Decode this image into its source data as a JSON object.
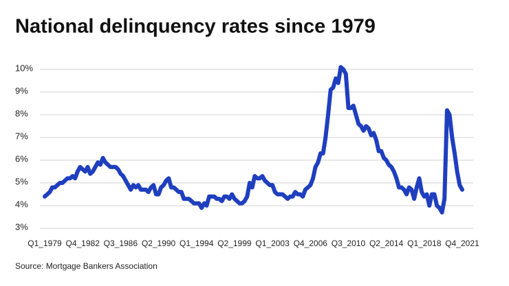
{
  "chart_data": {
    "type": "line",
    "title": "National delinquency rates since 1979",
    "source": "Source: Mortgage Bankers Association",
    "color": "#1f3fbf",
    "grid": true,
    "categories": [
      "Q1_1979",
      null,
      null,
      null,
      null,
      null,
      null,
      null,
      null,
      null,
      null,
      null,
      null,
      null,
      null,
      "Q4_1982",
      null,
      null,
      null,
      null,
      null,
      null,
      null,
      null,
      null,
      null,
      null,
      null,
      null,
      null,
      "Q3_1986",
      null,
      null,
      null,
      null,
      null,
      null,
      null,
      null,
      null,
      null,
      null,
      null,
      null,
      null,
      "Q2_1990",
      null,
      null,
      null,
      null,
      null,
      null,
      null,
      null,
      null,
      null,
      null,
      null,
      null,
      null,
      "Q1_1994",
      null,
      null,
      null,
      null,
      null,
      null,
      null,
      null,
      null,
      null,
      null,
      null,
      null,
      null,
      "Q2_1999",
      null,
      null,
      null,
      null,
      null,
      null,
      null,
      null,
      null,
      null,
      null,
      null,
      null,
      null,
      "Q1_2003",
      null,
      null,
      null,
      null,
      null,
      null,
      null,
      null,
      null,
      null,
      null,
      null,
      null,
      null,
      "Q4_2006",
      null,
      null,
      null,
      null,
      null,
      null,
      null,
      null,
      null,
      null,
      null,
      null,
      null,
      null,
      "Q3_2010",
      null,
      null,
      null,
      null,
      null,
      null,
      null,
      null,
      null,
      null,
      null,
      null,
      null,
      null,
      "Q2_2014",
      null,
      null,
      null,
      null,
      null,
      null,
      null,
      null,
      null,
      null,
      null,
      null,
      null,
      null,
      "Q1_2018",
      null,
      null,
      null,
      null,
      null,
      null,
      null,
      null,
      null,
      null,
      null,
      null,
      null,
      null,
      "Q4_2021"
    ],
    "values": [
      4.4,
      4.5,
      4.6,
      4.8,
      4.8,
      4.9,
      5.0,
      5.0,
      5.1,
      5.2,
      5.2,
      5.3,
      5.2,
      5.5,
      5.7,
      5.6,
      5.5,
      5.7,
      5.4,
      5.5,
      5.7,
      5.9,
      5.8,
      6.1,
      5.9,
      5.8,
      5.7,
      5.7,
      5.7,
      5.6,
      5.4,
      5.3,
      5.1,
      4.9,
      4.7,
      4.9,
      4.8,
      4.9,
      4.7,
      4.7,
      4.7,
      4.6,
      4.8,
      4.9,
      4.5,
      4.5,
      4.8,
      4.9,
      5.1,
      5.2,
      4.8,
      4.8,
      4.7,
      4.6,
      4.6,
      4.3,
      4.3,
      4.3,
      4.2,
      4.1,
      4.1,
      4.1,
      3.9,
      4.1,
      4.0,
      4.4,
      4.4,
      4.4,
      4.3,
      4.3,
      4.2,
      4.4,
      4.4,
      4.3,
      4.5,
      4.3,
      4.2,
      4.1,
      4.1,
      4.2,
      4.4,
      5.0,
      4.8,
      5.3,
      5.2,
      5.2,
      5.3,
      5.1,
      5.0,
      4.9,
      4.9,
      4.6,
      4.5,
      4.5,
      4.5,
      4.4,
      4.3,
      4.4,
      4.4,
      4.6,
      4.5,
      4.5,
      4.4,
      4.7,
      4.8,
      4.9,
      5.2,
      5.7,
      5.9,
      6.3,
      6.3,
      7.0,
      8.0,
      9.1,
      9.2,
      9.6,
      9.4,
      10.1,
      10.0,
      9.8,
      8.3,
      8.3,
      8.4,
      8.0,
      7.6,
      7.5,
      7.3,
      7.5,
      7.4,
      7.1,
      7.2,
      6.9,
      6.4,
      6.4,
      6.1,
      6.0,
      5.8,
      5.7,
      5.5,
      5.2,
      4.8,
      4.8,
      4.7,
      4.5,
      4.8,
      4.7,
      4.3,
      4.8,
      5.2,
      4.6,
      4.4,
      4.5,
      4.0,
      4.5,
      4.5,
      4.0,
      3.9,
      3.7,
      4.3,
      8.2,
      8.0,
      7.0,
      6.3,
      5.5,
      4.9,
      4.7
    ],
    "ylim": [
      2.7,
      10.3
    ],
    "yticks": [
      {
        "value": 3,
        "label": "3%"
      },
      {
        "value": 4,
        "label": "4%"
      },
      {
        "value": 5,
        "label": "5%"
      },
      {
        "value": 6,
        "label": "6%"
      },
      {
        "value": 7,
        "label": "7%"
      },
      {
        "value": 8,
        "label": "8%"
      },
      {
        "value": 9,
        "label": "9%"
      },
      {
        "value": 10,
        "label": "10%"
      }
    ]
  }
}
